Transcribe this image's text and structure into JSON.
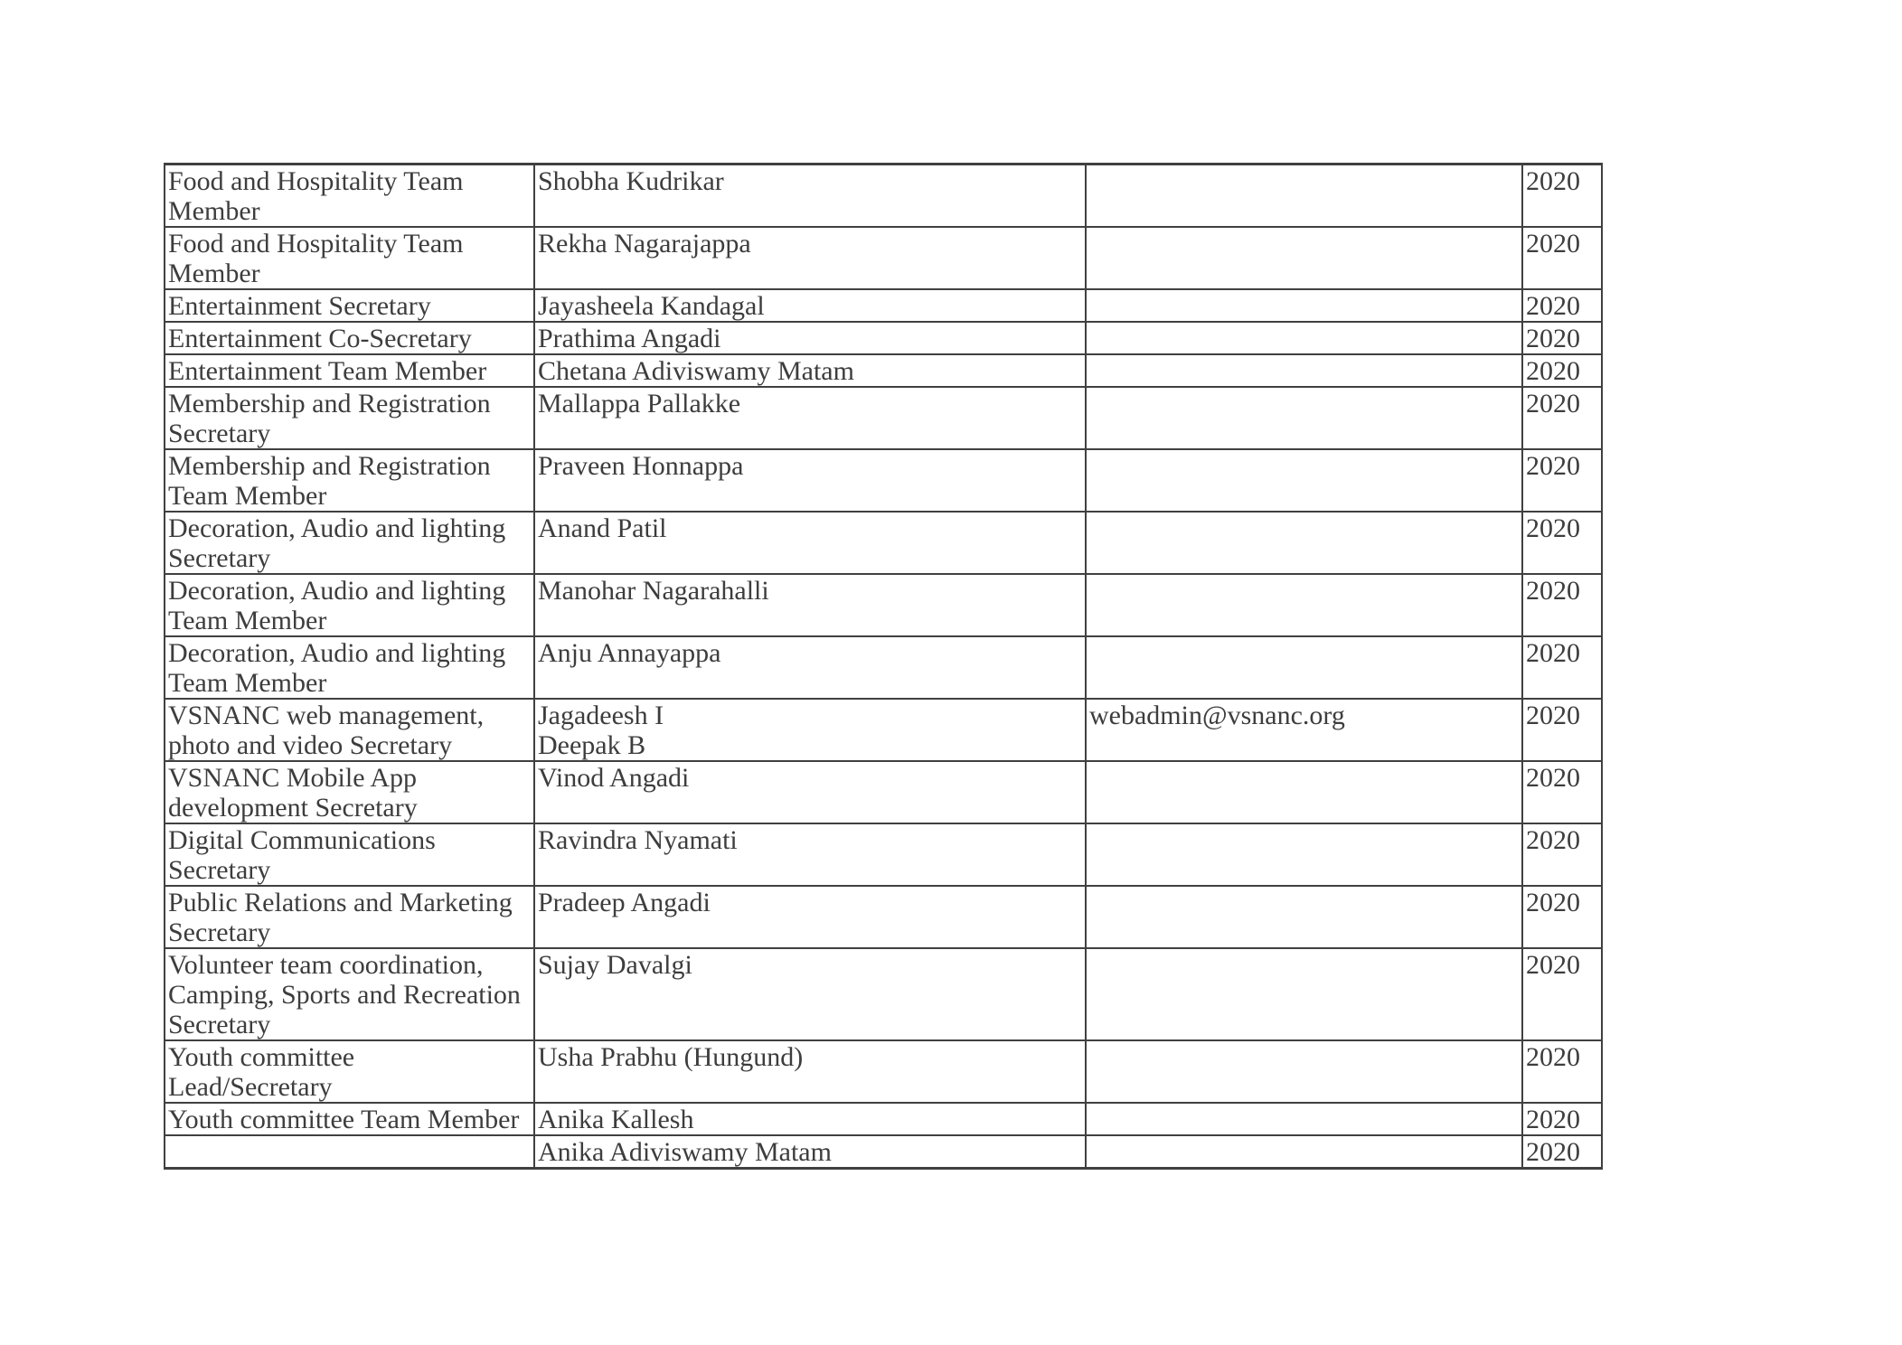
{
  "colors": {
    "text": "#3d3d3d",
    "border": "#404040",
    "background": "#ffffff"
  },
  "table": {
    "year_default": "2020",
    "rows": [
      {
        "role": "Food and Hospitality Team\nMember",
        "name": "Shobha Kudrikar",
        "email": "",
        "year": "2020"
      },
      {
        "role": "Food and Hospitality Team\nMember",
        "name": "Rekha Nagarajappa",
        "email": "",
        "year": "2020"
      },
      {
        "role": "Entertainment Secretary",
        "name": "Jayasheela Kandagal",
        "email": "",
        "year": "2020"
      },
      {
        "role": "Entertainment Co-Secretary",
        "name": "Prathima Angadi",
        "email": "",
        "year": "2020"
      },
      {
        "role": "Entertainment Team Member",
        "name": "Chetana Adiviswamy Matam",
        "email": "",
        "year": "2020"
      },
      {
        "role": "Membership and Registration\nSecretary",
        "name": "Mallappa Pallakke",
        "email": "",
        "year": "2020"
      },
      {
        "role": "Membership and Registration\nTeam Member",
        "name": "Praveen Honnappa",
        "email": "",
        "year": "2020"
      },
      {
        "role": "Decoration, Audio and lighting\nSecretary",
        "name": "Anand Patil",
        "email": "",
        "year": "2020"
      },
      {
        "role": "Decoration, Audio and lighting\nTeam Member",
        "name": "Manohar Nagarahalli",
        "email": "",
        "year": "2020"
      },
      {
        "role": "Decoration, Audio and lighting\nTeam Member",
        "name": "Anju Annayappa",
        "email": "",
        "year": "2020"
      },
      {
        "role": "VSNANC web management,\nphoto and video Secretary",
        "name": "Jagadeesh I\nDeepak B",
        "email": "webadmin@vsnanc.org",
        "year": "2020"
      },
      {
        "role": "VSNANC Mobile App\ndevelopment Secretary",
        "name": "Vinod Angadi",
        "email": "",
        "year": "2020"
      },
      {
        "role": "Digital Communications\nSecretary",
        "name": "Ravindra Nyamati",
        "email": "",
        "year": "2020"
      },
      {
        "role": "Public Relations and Marketing\nSecretary",
        "name": "Pradeep Angadi",
        "email": "",
        "year": "2020"
      },
      {
        "role": "Volunteer team coordination,\nCamping, Sports and Recreation\nSecretary",
        "name": "Sujay Davalgi",
        "email": "",
        "year": "2020"
      },
      {
        "role": "Youth committee\nLead/Secretary",
        "name": "Usha Prabhu (Hungund)",
        "email": "",
        "year": "2020"
      },
      {
        "role": "Youth committee Team Member",
        "name": "Anika Kallesh",
        "email": "",
        "year": "2020"
      },
      {
        "role": "",
        "name": "Anika Adiviswamy Matam",
        "email": "",
        "year": "2020"
      }
    ]
  }
}
